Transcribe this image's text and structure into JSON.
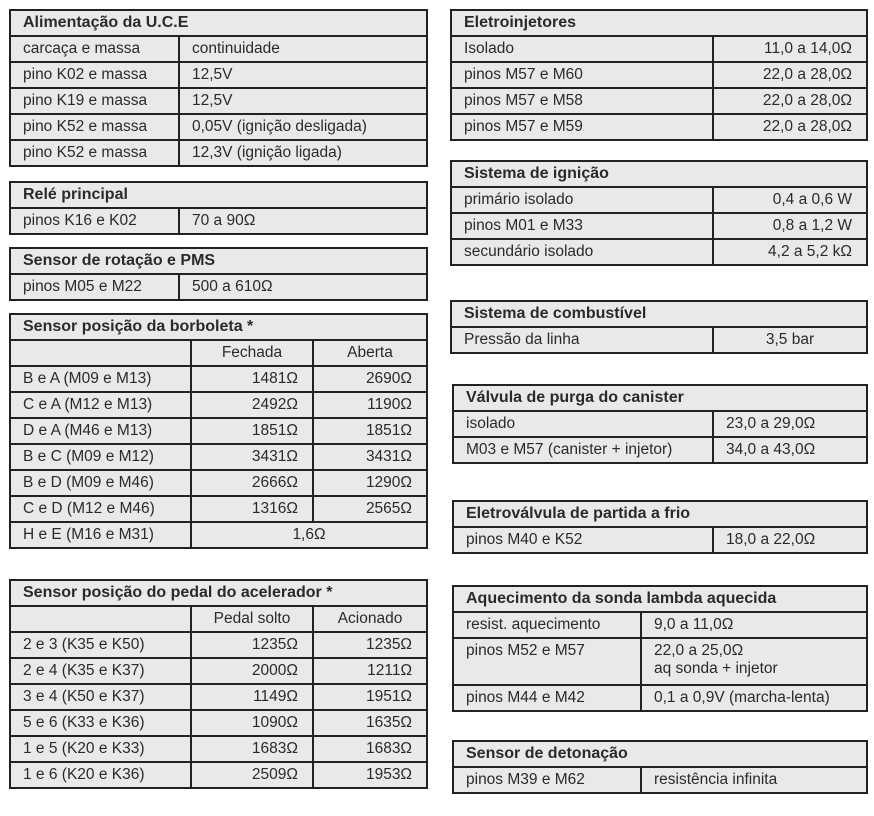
{
  "sections": [
    {
      "id": "alimentacao",
      "title": "Alimentação da U.C.E",
      "rows": [
        [
          "carcaça e massa",
          "continuidade"
        ],
        [
          "pino K02 e massa",
          "12,5V"
        ],
        [
          "pino K19 e massa",
          "12,5V"
        ],
        [
          "pino K52 e massa",
          "0,05V (ignição desligada)"
        ],
        [
          "pino K52 e massa",
          "12,3V (ignição ligada)"
        ]
      ]
    },
    {
      "id": "rele",
      "title": "Relé principal",
      "rows": [
        [
          "pinos K16 e K02",
          "70 a 90Ω"
        ]
      ]
    },
    {
      "id": "rotacao",
      "title": "Sensor de rotação e PMS",
      "rows": [
        [
          "pinos M05 e M22",
          "500 a  610Ω"
        ]
      ]
    },
    {
      "id": "borboleta",
      "title": "Sensor posição da borboleta *",
      "header": [
        "",
        "Fechada",
        "Aberta"
      ],
      "rows": [
        [
          "B e A (M09 e M13)",
          "1481Ω",
          "2690Ω"
        ],
        [
          "C e A (M12 e M13)",
          "2492Ω",
          "1190Ω"
        ],
        [
          "D e A (M46 e M13)",
          "1851Ω",
          "1851Ω"
        ],
        [
          "B e C (M09 e M12)",
          "3431Ω",
          "3431Ω"
        ],
        [
          "B e D (M09 e M46)",
          "2666Ω",
          "1290Ω"
        ],
        [
          "C e D (M12 e M46)",
          "1316Ω",
          "2565Ω"
        ],
        [
          "H e E (M16 e M31)",
          "1,6Ω"
        ]
      ]
    },
    {
      "id": "pedal",
      "title": "Sensor posição do pedal do acelerador *",
      "header": [
        "",
        "Pedal solto",
        "Acionado"
      ],
      "rows": [
        [
          "2 e 3 (K35 e K50)",
          "1235Ω",
          "1235Ω"
        ],
        [
          "2 e 4 (K35 e K37)",
          "2000Ω",
          "1211Ω"
        ],
        [
          "3 e 4 (K50 e K37)",
          "1149Ω",
          "1951Ω"
        ],
        [
          "5 e 6 (K33 e K36)",
          "1090Ω",
          "1635Ω"
        ],
        [
          "1 e 5 (K20 e K33)",
          "1683Ω",
          "1683Ω"
        ],
        [
          "1 e 6 (K20 e K36)",
          "2509Ω",
          "1953Ω"
        ]
      ]
    },
    {
      "id": "injetores",
      "title": "Eletroinjetores",
      "rows": [
        [
          "Isolado",
          "11,0 a 14,0Ω"
        ],
        [
          "pinos M57 e M60",
          "22,0 a 28,0Ω"
        ],
        [
          "pinos M57 e M58",
          "22,0 a 28,0Ω"
        ],
        [
          "pinos M57 e M59",
          "22,0 a 28,0Ω"
        ]
      ]
    },
    {
      "id": "ignicao",
      "title": "Sistema de ignição",
      "rows": [
        [
          "primário isolado",
          "0,4 a 0,6 W"
        ],
        [
          "pinos M01 e M33",
          "0,8 a 1,2 W"
        ],
        [
          "secundário isolado",
          "4,2 a 5,2 kΩ"
        ]
      ]
    },
    {
      "id": "combustivel",
      "title": "Sistema de combustível",
      "rows": [
        [
          "Pressão da linha",
          "3,5 bar"
        ]
      ]
    },
    {
      "id": "canister",
      "title": "Válvula de purga do canister",
      "rows": [
        [
          "isolado",
          "23,0 a 29,0Ω"
        ],
        [
          "M03 e M57 (canister + injetor)",
          "34,0 a 43,0Ω"
        ]
      ]
    },
    {
      "id": "partida-frio",
      "title": "Eletroválvula de partida a frio",
      "rows": [
        [
          "pinos M40 e K52",
          "18,0 a 22,0Ω"
        ]
      ]
    },
    {
      "id": "sonda",
      "title": "Aquecimento da sonda lambda aquecida",
      "rows": [
        [
          "resist. aquecimento",
          "9,0 a 11,0Ω"
        ],
        [
          "pinos M52 e M57",
          "22,0 a 25,0Ω\naq sonda + injetor"
        ],
        [
          "pinos M44 e M42",
          "0,1 a 0,9V (marcha-lenta)"
        ]
      ]
    },
    {
      "id": "detonacao",
      "title": "Sensor de detonação",
      "rows": [
        [
          "pinos M39 e M62",
          "resistência infinita"
        ]
      ]
    }
  ]
}
